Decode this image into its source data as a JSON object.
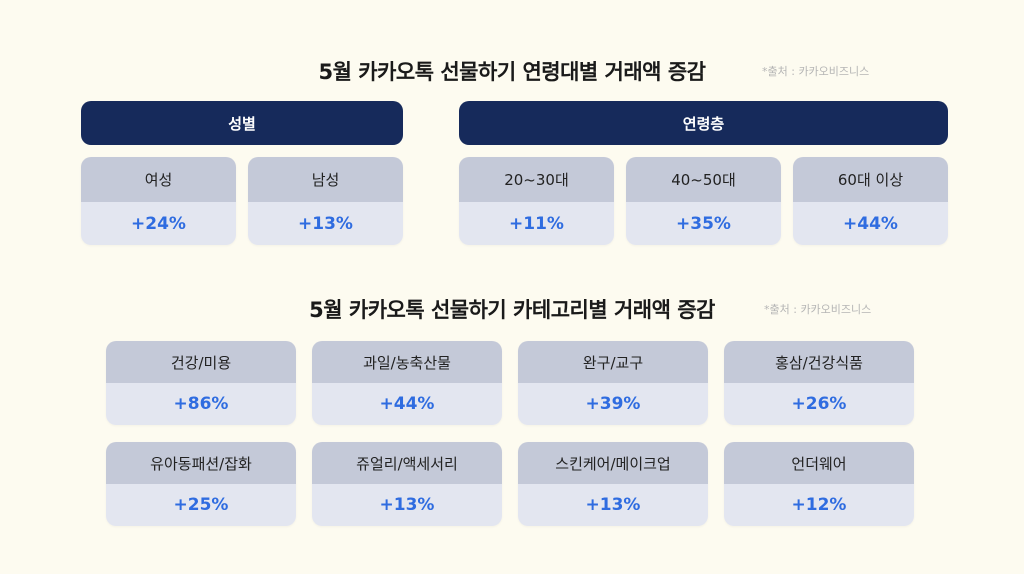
{
  "section1": {
    "title": "5월 카카오톡 선물하기 연령대별 거래액 증감",
    "source": "*출처 : 카카오비즈니스",
    "gender": {
      "header": "성별",
      "items": [
        {
          "label": "여성",
          "value": "+24%"
        },
        {
          "label": "남성",
          "value": "+13%"
        }
      ]
    },
    "age": {
      "header": "연령층",
      "items": [
        {
          "label": "20~30대",
          "value": "+11%"
        },
        {
          "label": "40~50대",
          "value": "+35%"
        },
        {
          "label": "60대 이상",
          "value": "+44%"
        }
      ]
    }
  },
  "section2": {
    "title": "5월 카카오톡 선물하기 카테고리별 거래액 증감",
    "source": "*출처 : 카카오비즈니스",
    "items": [
      {
        "label": "건강/미용",
        "value": "+86%"
      },
      {
        "label": "과일/농축산물",
        "value": "+44%"
      },
      {
        "label": "완구/교구",
        "value": "+39%"
      },
      {
        "label": "홍삼/건강식품",
        "value": "+26%"
      },
      {
        "label": "유아동패션/잡화",
        "value": "+25%"
      },
      {
        "label": "쥬얼리/액세서리",
        "value": "+13%"
      },
      {
        "label": "스킨케어/메이크업",
        "value": "+13%"
      },
      {
        "label": "언더웨어",
        "value": "+12%"
      }
    ]
  },
  "colors": {
    "background": "#fdfbf0",
    "header": "#162a5b",
    "label_bg": "#c4c9d8",
    "value_bg": "#e3e6f0",
    "value_text": "#2f6ce0"
  }
}
